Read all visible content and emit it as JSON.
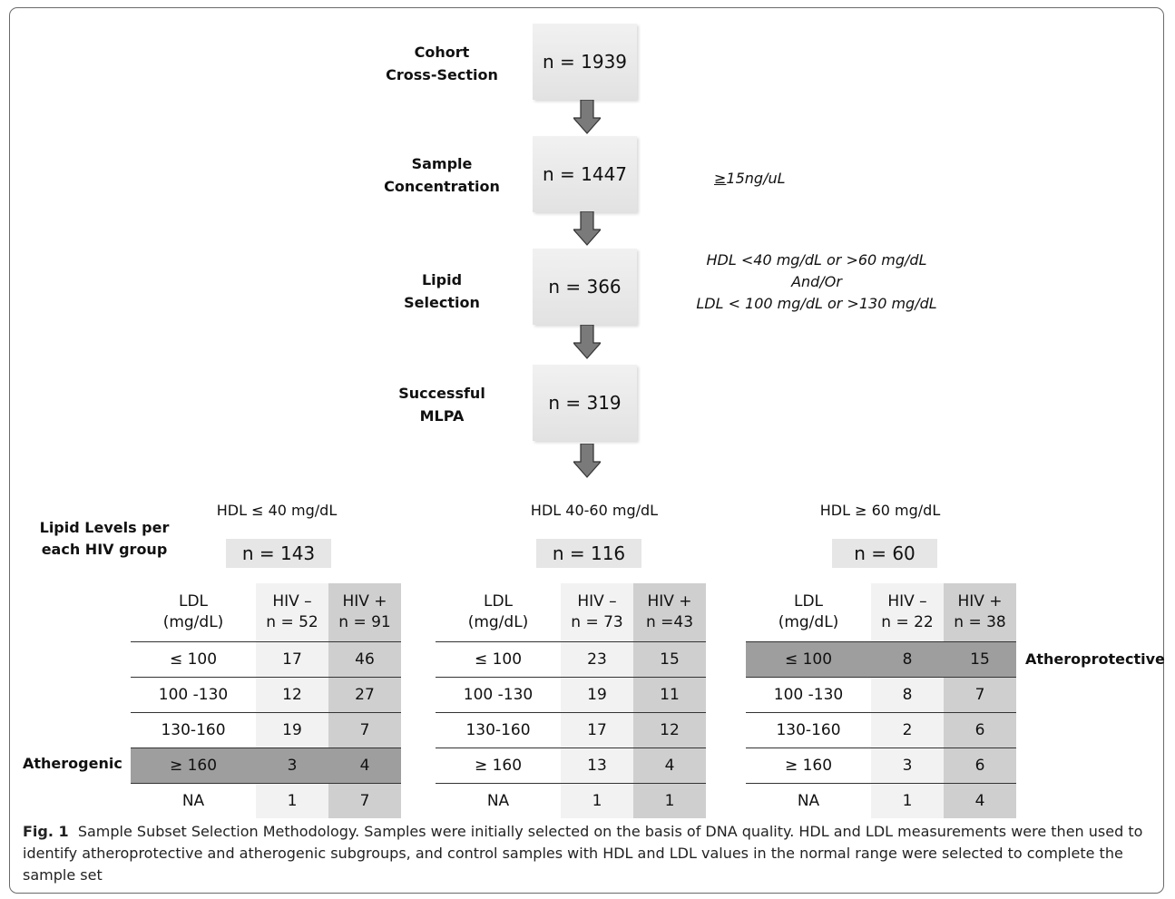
{
  "flow": [
    {
      "label": "Cohort\nCross-Section",
      "n": "n = 1939",
      "note": ""
    },
    {
      "label": "Sample\nConcentration",
      "n": "n = 1447",
      "note": "15ng/uL"
    },
    {
      "label": "Lipid\nSelection",
      "n": "n = 366",
      "note": "HDL <40 mg/dL or >60 mg/dL\nAnd/Or\nLDL < 100 mg/dL or >130 mg/dL"
    },
    {
      "label": "Successful\nMLPA",
      "n": "n = 319",
      "note": ""
    }
  ],
  "note_ge": "≥",
  "side_label": "Lipid Levels per\neach HIV group",
  "atherogenic_label": "Atherogenic",
  "atheroprotective_label": "Atheroprotective",
  "groups": [
    {
      "heading": "HDL ≤ 40 mg/dL",
      "n": "n = 143",
      "hdr": {
        "ldl": "LDL\n(mg/dL)",
        "neg": "HIV –\nn = 52",
        "pos": "HIV +\nn = 91"
      },
      "rows": [
        {
          "ldl": "≤ 100",
          "neg": "17",
          "pos": "46"
        },
        {
          "ldl": "100 -130",
          "neg": "12",
          "pos": "27"
        },
        {
          "ldl": "130-160",
          "neg": "19",
          "pos": "7"
        },
        {
          "ldl": "≥ 160",
          "neg": "3",
          "pos": "4"
        },
        {
          "ldl": "NA",
          "neg": "1",
          "pos": "7"
        }
      ]
    },
    {
      "heading": "HDL 40-60 mg/dL",
      "n": "n = 116",
      "hdr": {
        "ldl": "LDL\n(mg/dL)",
        "neg": "HIV –\nn = 73",
        "pos": "HIV +\nn =43"
      },
      "rows": [
        {
          "ldl": "≤ 100",
          "neg": "23",
          "pos": "15"
        },
        {
          "ldl": "100 -130",
          "neg": "19",
          "pos": "11"
        },
        {
          "ldl": "130-160",
          "neg": "17",
          "pos": "12"
        },
        {
          "ldl": "≥ 160",
          "neg": "13",
          "pos": "4"
        },
        {
          "ldl": "NA",
          "neg": "1",
          "pos": "1"
        }
      ]
    },
    {
      "heading": "HDL ≥ 60 mg/dL",
      "n": "n = 60",
      "hdr": {
        "ldl": "LDL\n(mg/dL)",
        "neg": "HIV –\nn = 22",
        "pos": "HIV +\nn = 38"
      },
      "rows": [
        {
          "ldl": "≤ 100",
          "neg": "8",
          "pos": "15"
        },
        {
          "ldl": "100 -130",
          "neg": "8",
          "pos": "7"
        },
        {
          "ldl": "130-160",
          "neg": "2",
          "pos": "6"
        },
        {
          "ldl": "≥ 160",
          "neg": "3",
          "pos": "6"
        },
        {
          "ldl": "NA",
          "neg": "1",
          "pos": "4"
        }
      ]
    }
  ],
  "caption": {
    "fig": "Fig. 1",
    "text": "Sample Subset Selection Methodology. Samples were initially selected on the basis of DNA quality. HDL and LDL measurements were then used to identify atheroprotective and atherogenic subgroups, and control samples with HDL and LDL values in the normal range were selected to complete the sample set"
  }
}
